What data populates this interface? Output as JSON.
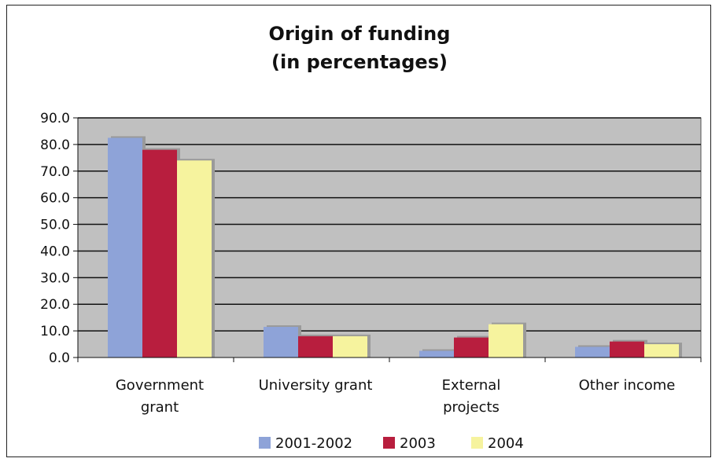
{
  "chart_data": {
    "type": "bar",
    "title_lines": [
      "Origin of funding",
      "(in percentages)"
    ],
    "categories": [
      [
        "Government",
        "grant"
      ],
      [
        "University grant"
      ],
      [
        "External",
        "projects"
      ],
      [
        "Other income"
      ]
    ],
    "series": [
      {
        "name": "2001-2002",
        "color": "#8ea3d8",
        "values": [
          82.5,
          11.5,
          2.5,
          4.0
        ]
      },
      {
        "name": "2003",
        "color": "#b81e3e",
        "values": [
          78.0,
          8.0,
          7.5,
          6.0
        ]
      },
      {
        "name": "2004",
        "color": "#f6f39e",
        "values": [
          74.0,
          8.0,
          12.5,
          5.0
        ]
      }
    ],
    "yticks": [
      "0.0",
      "10.0",
      "20.0",
      "30.0",
      "40.0",
      "50.0",
      "60.0",
      "70.0",
      "80.0",
      "90.0"
    ],
    "ylim": [
      0,
      90
    ],
    "grid": true,
    "legend_position": "bottom",
    "plot_background": "#c0c0c0"
  }
}
